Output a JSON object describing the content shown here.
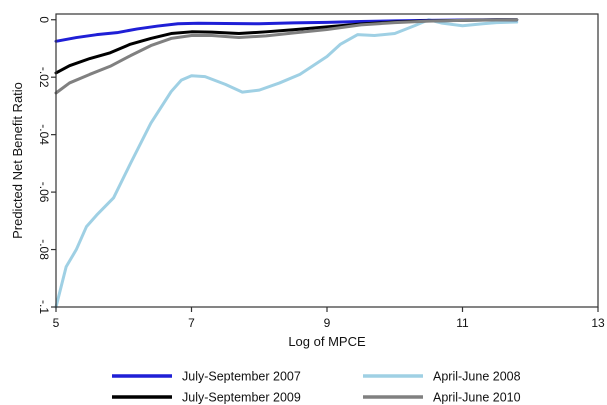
{
  "chart_data": {
    "type": "line",
    "xlabel": "Log of MPCE",
    "ylabel": "Predicted Net Benefit Ratio",
    "xlim": [
      5,
      13
    ],
    "ylim": [
      -0.1,
      0.002
    ],
    "x_ticks": [
      5,
      7,
      9,
      11,
      13
    ],
    "x_tick_labels": [
      "5",
      "7",
      "9",
      "11",
      "13"
    ],
    "y_ticks": [
      0,
      -0.02,
      -0.04,
      -0.06,
      -0.08,
      -0.1
    ],
    "y_tick_labels": [
      "0",
      "-.02",
      "-.04",
      "-.06",
      "-.08",
      "-.1"
    ],
    "grid": false,
    "legend_position": "bottom",
    "series": [
      {
        "name": "July-September 2007",
        "color": "#1f1fd6",
        "points": [
          [
            5.0,
            -0.0075
          ],
          [
            5.3,
            -0.0062
          ],
          [
            5.6,
            -0.0052
          ],
          [
            5.9,
            -0.0045
          ],
          [
            6.2,
            -0.0032
          ],
          [
            6.5,
            -0.0022
          ],
          [
            6.8,
            -0.0014
          ],
          [
            7.1,
            -0.0012
          ],
          [
            7.5,
            -0.0013
          ],
          [
            8.0,
            -0.0014
          ],
          [
            8.5,
            -0.0011
          ],
          [
            9.0,
            -0.0009
          ],
          [
            9.5,
            -0.0006
          ],
          [
            10.0,
            -0.0004
          ],
          [
            10.5,
            -0.0002
          ],
          [
            11.0,
            -0.0001
          ],
          [
            11.5,
            0.0
          ],
          [
            11.8,
            0.0
          ]
        ]
      },
      {
        "name": "April-June 2008",
        "color": "#9fd0e4",
        "points": [
          [
            5.0,
            -0.1
          ],
          [
            5.15,
            -0.086
          ],
          [
            5.3,
            -0.08
          ],
          [
            5.45,
            -0.072
          ],
          [
            5.6,
            -0.068
          ],
          [
            5.85,
            -0.062
          ],
          [
            6.1,
            -0.05
          ],
          [
            6.4,
            -0.036
          ],
          [
            6.7,
            -0.025
          ],
          [
            6.85,
            -0.021
          ],
          [
            7.0,
            -0.0195
          ],
          [
            7.2,
            -0.0198
          ],
          [
            7.5,
            -0.0225
          ],
          [
            7.75,
            -0.0252
          ],
          [
            8.0,
            -0.0245
          ],
          [
            8.3,
            -0.022
          ],
          [
            8.6,
            -0.019
          ],
          [
            9.0,
            -0.0128
          ],
          [
            9.2,
            -0.0085
          ],
          [
            9.45,
            -0.0052
          ],
          [
            9.7,
            -0.0055
          ],
          [
            10.0,
            -0.0048
          ],
          [
            10.3,
            -0.002
          ],
          [
            10.5,
            0.0
          ],
          [
            10.7,
            -0.0012
          ],
          [
            11.0,
            -0.0021
          ],
          [
            11.3,
            -0.0014
          ],
          [
            11.5,
            -0.001
          ],
          [
            11.8,
            -0.0008
          ]
        ]
      },
      {
        "name": "July-September 2009",
        "color": "#000000",
        "points": [
          [
            5.0,
            -0.0185
          ],
          [
            5.2,
            -0.016
          ],
          [
            5.5,
            -0.0135
          ],
          [
            5.8,
            -0.0115
          ],
          [
            6.1,
            -0.0085
          ],
          [
            6.4,
            -0.0065
          ],
          [
            6.7,
            -0.0048
          ],
          [
            7.0,
            -0.0042
          ],
          [
            7.3,
            -0.0043
          ],
          [
            7.7,
            -0.0048
          ],
          [
            8.1,
            -0.0042
          ],
          [
            8.5,
            -0.0035
          ],
          [
            9.0,
            -0.0025
          ],
          [
            9.5,
            -0.0015
          ],
          [
            10.0,
            -0.0008
          ],
          [
            10.5,
            -0.0004
          ],
          [
            11.0,
            -0.0002
          ],
          [
            11.5,
            0.0
          ],
          [
            11.8,
            0.0
          ]
        ]
      },
      {
        "name": "April-June 2010",
        "color": "#808080",
        "points": [
          [
            5.0,
            -0.0255
          ],
          [
            5.2,
            -0.022
          ],
          [
            5.5,
            -0.019
          ],
          [
            5.8,
            -0.0162
          ],
          [
            6.1,
            -0.0125
          ],
          [
            6.4,
            -0.009
          ],
          [
            6.7,
            -0.0065
          ],
          [
            7.0,
            -0.0055
          ],
          [
            7.3,
            -0.0055
          ],
          [
            7.7,
            -0.0062
          ],
          [
            8.1,
            -0.0056
          ],
          [
            8.5,
            -0.0046
          ],
          [
            9.0,
            -0.0034
          ],
          [
            9.5,
            -0.0018
          ],
          [
            10.0,
            -0.001
          ],
          [
            10.5,
            -0.0005
          ],
          [
            11.0,
            -0.0002
          ],
          [
            11.5,
            -0.0001
          ],
          [
            11.8,
            0.0
          ]
        ]
      }
    ],
    "legend_order": [
      "July-September 2007",
      "April-June 2008",
      "July-September 2009",
      "April-June 2010"
    ]
  }
}
